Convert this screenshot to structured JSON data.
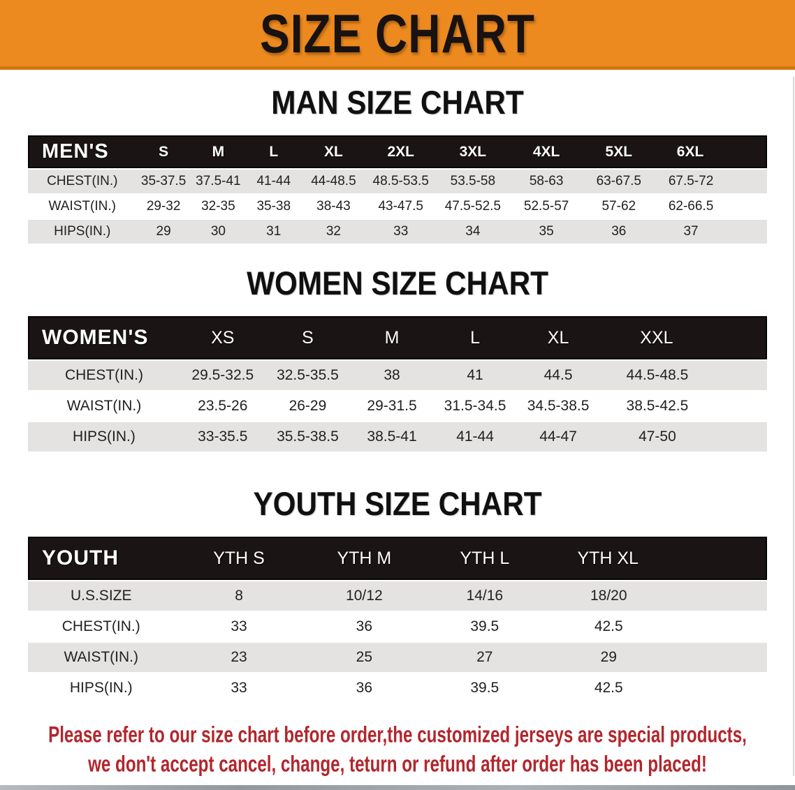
{
  "banner": {
    "title": "SIZE CHART"
  },
  "tables": [
    {
      "heading": "MAN SIZE CHART",
      "header_label": "MEN'S",
      "columns": [
        "S",
        "M",
        "L",
        "XL",
        "2XL",
        "3XL",
        "4XL",
        "5XL",
        "6XL"
      ],
      "rows": [
        {
          "label": "CHEST(IN.)",
          "values": [
            "35-37.5",
            "37.5-41",
            "41-44",
            "44-48.5",
            "48.5-53.5",
            "53.5-58",
            "58-63",
            "63-67.5",
            "67.5-72"
          ]
        },
        {
          "label": "WAIST(IN.)",
          "values": [
            "29-32",
            "32-35",
            "35-38",
            "38-43",
            "43-47.5",
            "47.5-52.5",
            "52.5-57",
            "57-62",
            "62-66.5"
          ]
        },
        {
          "label": "HIPS(IN.)",
          "values": [
            "29",
            "30",
            "31",
            "32",
            "33",
            "34",
            "35",
            "36",
            "37"
          ]
        }
      ]
    },
    {
      "heading": "WOMEN SIZE CHART",
      "header_label": "WOMEN'S",
      "columns": [
        "XS",
        "S",
        "M",
        "L",
        "XL",
        "XXL"
      ],
      "rows": [
        {
          "label": "CHEST(IN.)",
          "values": [
            "29.5-32.5",
            "32.5-35.5",
            "38",
            "41",
            "44.5",
            "44.5-48.5"
          ]
        },
        {
          "label": "WAIST(IN.)",
          "values": [
            "23.5-26",
            "26-29",
            "29-31.5",
            "31.5-34.5",
            "34.5-38.5",
            "38.5-42.5"
          ]
        },
        {
          "label": "HIPS(IN.)",
          "values": [
            "33-35.5",
            "35.5-38.5",
            "38.5-41",
            "41-44",
            "44-47",
            "47-50"
          ]
        }
      ]
    },
    {
      "heading": "YOUTH SIZE CHART",
      "header_label": "YOUTH",
      "columns": [
        "YTH S",
        "YTH M",
        "YTH L",
        "YTH XL"
      ],
      "rows": [
        {
          "label": "U.S.SIZE",
          "values": [
            "8",
            "10/12",
            "14/16",
            "18/20"
          ]
        },
        {
          "label": "CHEST(IN.)",
          "values": [
            "33",
            "36",
            "39.5",
            "42.5"
          ]
        },
        {
          "label": "WAIST(IN.)",
          "values": [
            "23",
            "25",
            "27",
            "29"
          ]
        },
        {
          "label": "HIPS(IN.)",
          "values": [
            "33",
            "36",
            "39.5",
            "42.5"
          ]
        }
      ]
    }
  ],
  "disclaimer": {
    "lines": [
      "Please refer to our size chart before order,the customized jerseys are special products,",
      "we don't accept cancel, change, teturn or refund after order has been placed!"
    ]
  },
  "colors": {
    "banner_bg": "#ED8A1F",
    "banner_border": "#D1760F",
    "table_header_bg": "#1B1414",
    "row_alt_gray": "#E4E3E2",
    "disclaimer_red": "#B2262C"
  }
}
